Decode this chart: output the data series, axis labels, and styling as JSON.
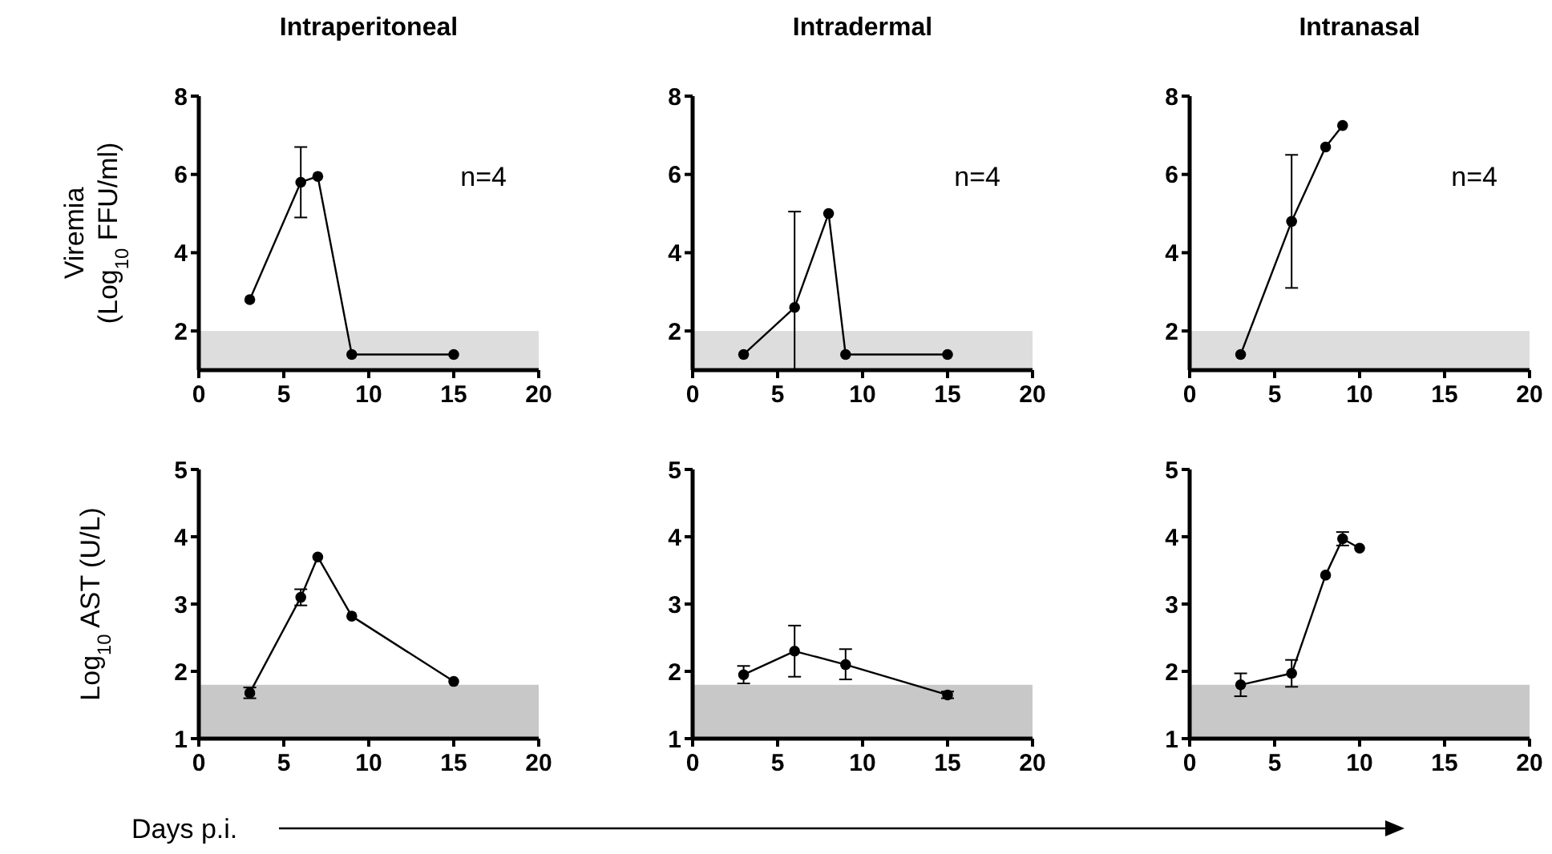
{
  "chart_data": [
    {
      "type": "line",
      "title": "Intraperitoneal",
      "ylabel": "Viremia\n(Log$_{10}$ FFU/ml)",
      "xlim": [
        0,
        20
      ],
      "xticks": [
        0,
        5,
        10,
        15,
        20
      ],
      "ylim": [
        1,
        8
      ],
      "yticks": [
        2,
        4,
        6,
        8
      ],
      "marker": "circle",
      "annotations": [
        "n=4"
      ],
      "bands": [
        {
          "axis": "y",
          "from": 1,
          "to": 2,
          "color": "#dddddd"
        }
      ],
      "series": [
        {
          "color": "#000000",
          "x": [
            3,
            6,
            7,
            9,
            15
          ],
          "values": [
            2.8,
            5.8,
            5.95,
            1.4,
            1.4
          ],
          "errors": [
            null,
            [
              4.9,
              6.7
            ],
            null,
            null,
            null
          ]
        }
      ]
    },
    {
      "type": "line",
      "title": "Intradermal",
      "xlim": [
        0,
        20
      ],
      "xticks": [
        0,
        5,
        10,
        15,
        20
      ],
      "ylim": [
        1,
        8
      ],
      "yticks": [
        2,
        4,
        6,
        8
      ],
      "marker": "circle",
      "annotations": [
        "n=4"
      ],
      "bands": [
        {
          "axis": "y",
          "from": 1,
          "to": 2,
          "color": "#dddddd"
        }
      ],
      "series": [
        {
          "color": "#000000",
          "x": [
            3,
            6,
            8,
            9,
            15
          ],
          "values": [
            1.4,
            2.6,
            5.0,
            1.4,
            1.4
          ],
          "errors": [
            null,
            [
              1.0,
              5.05
            ],
            null,
            null,
            null
          ]
        }
      ]
    },
    {
      "type": "line",
      "title": "Intranasal",
      "xlim": [
        0,
        20
      ],
      "xticks": [
        0,
        5,
        10,
        15,
        20
      ],
      "ylim": [
        1,
        8
      ],
      "yticks": [
        2,
        4,
        6,
        8
      ],
      "marker": "circle",
      "annotations": [
        "n=4"
      ],
      "bands": [
        {
          "axis": "y",
          "from": 1,
          "to": 2,
          "color": "#dddddd"
        }
      ],
      "series": [
        {
          "color": "#000000",
          "x": [
            3,
            6,
            8,
            9
          ],
          "values": [
            1.4,
            4.8,
            6.7,
            7.25
          ],
          "errors": [
            null,
            [
              3.1,
              6.5
            ],
            null,
            null
          ]
        }
      ]
    },
    {
      "type": "line",
      "ylabel": "Log$_{10}$ AST (U/L)",
      "xlabel": "Days p.i.",
      "xlim": [
        0,
        20
      ],
      "xticks": [
        0,
        5,
        10,
        15,
        20
      ],
      "ylim": [
        1,
        5
      ],
      "yticks": [
        1,
        2,
        3,
        4,
        5
      ],
      "marker": "circle",
      "bands": [
        {
          "axis": "y",
          "from": 1,
          "to": 1.8,
          "color": "#c8c8c8"
        }
      ],
      "series": [
        {
          "color": "#000000",
          "x": [
            3,
            6,
            7,
            9,
            15
          ],
          "values": [
            1.68,
            3.1,
            3.7,
            2.82,
            1.85
          ],
          "errors": [
            0.08,
            0.12,
            null,
            null,
            null
          ]
        }
      ]
    },
    {
      "type": "line",
      "xlim": [
        0,
        20
      ],
      "xticks": [
        0,
        5,
        10,
        15,
        20
      ],
      "ylim": [
        1,
        5
      ],
      "yticks": [
        1,
        2,
        3,
        4,
        5
      ],
      "marker": "circle",
      "bands": [
        {
          "axis": "y",
          "from": 1,
          "to": 1.8,
          "color": "#c8c8c8"
        }
      ],
      "series": [
        {
          "color": "#000000",
          "x": [
            3,
            6,
            9,
            15
          ],
          "values": [
            1.95,
            2.3,
            2.1,
            1.65
          ],
          "errors": [
            0.13,
            [
              1.92,
              2.68
            ],
            [
              1.88,
              2.33
            ],
            0.05
          ]
        }
      ]
    },
    {
      "type": "line",
      "xlim": [
        0,
        20
      ],
      "xticks": [
        0,
        5,
        10,
        15,
        20
      ],
      "ylim": [
        1,
        5
      ],
      "yticks": [
        1,
        2,
        3,
        4,
        5
      ],
      "marker": "circle",
      "bands": [
        {
          "axis": "y",
          "from": 1,
          "to": 1.8,
          "color": "#c8c8c8"
        }
      ],
      "series": [
        {
          "color": "#000000",
          "x": [
            3,
            6,
            8,
            9,
            10
          ],
          "values": [
            1.8,
            1.97,
            3.43,
            3.97,
            3.83
          ],
          "errors": [
            0.17,
            0.2,
            null,
            0.1,
            null
          ]
        }
      ]
    }
  ]
}
